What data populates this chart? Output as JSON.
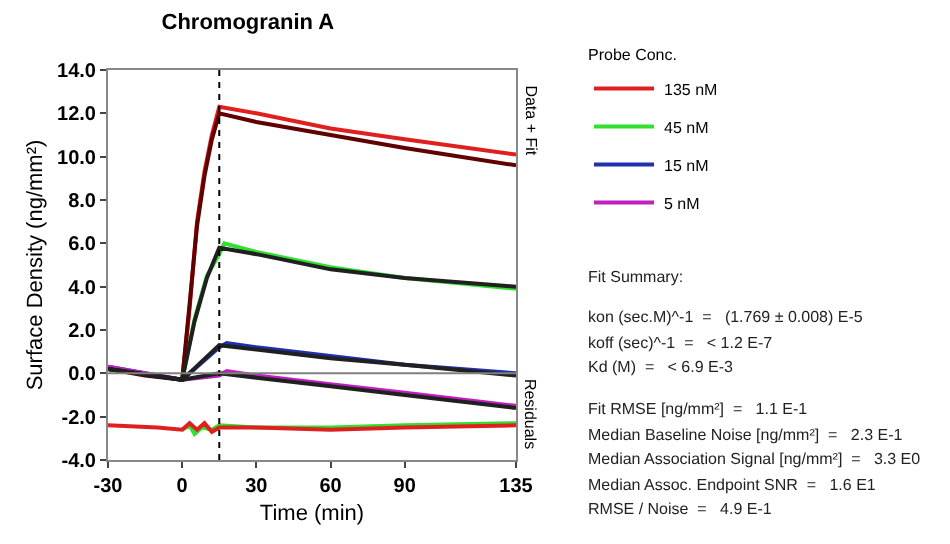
{
  "chart_data": {
    "type": "line",
    "title": "Chromogranin A",
    "xlabel": "Time (min)",
    "ylabel": "Surface Density (ng/mm²)",
    "legend_title": "Probe Conc.",
    "legend": "top right",
    "grid": false,
    "marker": "none",
    "line_style": "solid",
    "xlim": [
      -30,
      135
    ],
    "xticks": [
      -30,
      0,
      30,
      60,
      90,
      135
    ],
    "ylim": [
      -4,
      14
    ],
    "yticks": [
      {
        "value": -4,
        "label": "-4.0"
      },
      {
        "value": -2,
        "label": "-2.0"
      },
      {
        "value": 0,
        "label": "0.0"
      },
      {
        "value": 2,
        "label": "2.0"
      },
      {
        "value": 4,
        "label": "4.0"
      },
      {
        "value": 6,
        "label": "6.0"
      },
      {
        "value": 8,
        "label": "8.0"
      },
      {
        "value": 10,
        "label": "10.0"
      },
      {
        "value": 12,
        "label": "12.0"
      },
      {
        "value": 14,
        "label": "14.0"
      }
    ],
    "series": [
      {
        "name": "135 nM",
        "color": "#e02020",
        "x": [
          0,
          3,
          6,
          9,
          12,
          15,
          30,
          60,
          90,
          135
        ],
        "values": [
          -0.3,
          3,
          7,
          9.3,
          11,
          12.3,
          12,
          11.3,
          10.8,
          10.1
        ]
      },
      {
        "name": "45 nM",
        "color": "#30e030",
        "x": [
          0,
          5,
          10,
          15,
          17,
          30,
          60,
          90,
          135
        ],
        "values": [
          -0.3,
          2.5,
          4.5,
          5.5,
          6,
          5.6,
          4.9,
          4.4,
          3.9
        ]
      },
      {
        "name": "15 nM",
        "color": "#2030b0",
        "x": [
          -30,
          -15,
          0,
          15,
          18,
          30,
          60,
          90,
          135
        ],
        "values": [
          0.3,
          0,
          -0.3,
          1.2,
          1.4,
          1.2,
          0.8,
          0.4,
          0
        ]
      },
      {
        "name": "5 nM",
        "color": "#c020c0",
        "x": [
          -30,
          -15,
          0,
          15,
          18,
          30,
          60,
          90,
          135
        ],
        "values": [
          0.3,
          0,
          -0.3,
          -0.1,
          0.1,
          -0.1,
          -0.5,
          -0.9,
          -1.5
        ]
      },
      {
        "color": "#600000",
        "x": [
          -30,
          -15,
          0,
          3,
          6,
          9,
          12,
          15,
          30,
          60,
          90,
          135
        ],
        "values": [
          0.2,
          -0.1,
          -0.3,
          3.2,
          6.8,
          9.1,
          10.8,
          12,
          11.6,
          11,
          10.4,
          9.6
        ]
      },
      {
        "color": "#202020",
        "x": [
          -30,
          0,
          5,
          10,
          15,
          30,
          60,
          90,
          135
        ],
        "values": [
          0.2,
          -0.3,
          2.4,
          4.4,
          5.8,
          5.5,
          4.8,
          4.4,
          4
        ]
      },
      {
        "color": "#202020",
        "x": [
          -30,
          0,
          15,
          30,
          60,
          90,
          135
        ],
        "values": [
          0.2,
          -0.3,
          1.3,
          1.1,
          0.7,
          0.4,
          -0.1
        ]
      },
      {
        "color": "#202020",
        "x": [
          -30,
          0,
          15,
          30,
          60,
          90,
          135
        ],
        "values": [
          0.2,
          -0.3,
          0,
          -0.2,
          -0.6,
          -1,
          -1.6
        ]
      },
      {
        "color": "#30e030",
        "x": [
          0,
          3,
          5,
          8,
          12,
          15,
          30,
          60,
          90,
          135
        ],
        "values": [
          -2.6,
          -2.4,
          -2.8,
          -2.5,
          -2.6,
          -2.4,
          -2.5,
          -2.5,
          -2.4,
          -2.3
        ]
      },
      {
        "color": "#e02020",
        "x": [
          -30,
          -10,
          0,
          3,
          6,
          9,
          12,
          15,
          30,
          60,
          90,
          135
        ],
        "values": [
          -2.4,
          -2.5,
          -2.6,
          -2.3,
          -2.6,
          -2.3,
          -2.7,
          -2.5,
          -2.5,
          -2.6,
          -2.5,
          -2.4
        ]
      }
    ],
    "ref_lines": [
      {
        "axis": "x",
        "value": 15,
        "color": "#000000",
        "line_style": "dotted"
      },
      {
        "axis": "y",
        "value": 0,
        "color": "#808080",
        "line_style": "solid"
      }
    ],
    "annotations": [
      "Data + Fit",
      "Residuals",
      "Fit Summary:",
      "kon (sec.M)^-1  =   (1.769 ± 0.008) E-5",
      "koff (sec)^-1  =   < 1.2 E-7",
      "Kd (M)  =   < 6.9 E-3",
      "Fit RMSE [ng/mm²]  =   1.1 E-1",
      "Median Baseline Noise [ng/mm²]  =   2.3 E-1",
      "Median Association Signal [ng/mm²]  =   3.3 E0",
      "Median Assoc. Endpoint SNR  =   1.6 E1",
      "RMSE / Noise  =   4.9 E-1"
    ]
  }
}
